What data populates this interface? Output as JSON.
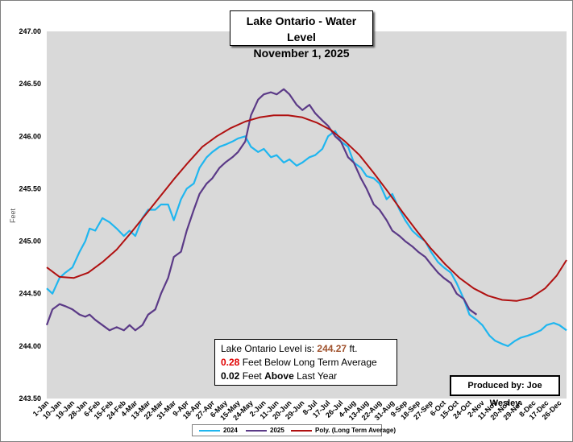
{
  "chart_data": {
    "type": "line",
    "title": "Lake Ontario - Water Level",
    "subtitle": "November 1, 2025",
    "ylabel": "Feet",
    "xlabel": "",
    "ylim": [
      243.5,
      247.0
    ],
    "ytick_labels": [
      "243.50",
      "244.00",
      "244.50",
      "245.00",
      "245.50",
      "246.00",
      "246.50",
      "247.00"
    ],
    "x_range_days": [
      1,
      365
    ],
    "x_tick_labels": [
      "1-Jan",
      "10-Jan",
      "19-Jan",
      "28-Jan",
      "6-Feb",
      "15-Feb",
      "24-Feb",
      "4-Mar",
      "13-Mar",
      "22-Mar",
      "31-Mar",
      "9-Apr",
      "18-Apr",
      "27-Apr",
      "6-May",
      "15-May",
      "24-May",
      "2-Jun",
      "11-Jun",
      "20-Jun",
      "29-Jun",
      "8-Jul",
      "17-Jul",
      "26-Jul",
      "4-Aug",
      "13-Aug",
      "22-Aug",
      "31-Aug",
      "9-Sep",
      "18-Sep",
      "27-Sep",
      "6-Oct",
      "15-Oct",
      "24-Oct",
      "2-Nov",
      "11-Nov",
      "20-Nov",
      "29-Nov",
      "8-Dec",
      "17-Dec",
      "26-Dec"
    ],
    "x_tick_days": [
      1,
      10,
      19,
      28,
      37,
      46,
      55,
      63,
      72,
      81,
      90,
      99,
      108,
      117,
      126,
      135,
      144,
      153,
      162,
      171,
      180,
      189,
      198,
      207,
      216,
      225,
      234,
      243,
      252,
      261,
      270,
      279,
      288,
      297,
      306,
      315,
      324,
      333,
      342,
      351,
      360
    ],
    "series": [
      {
        "name": "2024",
        "color": "#1fb6ef",
        "x": [
          1,
          5,
          10,
          14,
          19,
          24,
          28,
          31,
          35,
          40,
          45,
          50,
          55,
          59,
          63,
          68,
          72,
          77,
          81,
          86,
          90,
          95,
          99,
          104,
          108,
          113,
          117,
          122,
          126,
          131,
          135,
          140,
          144,
          149,
          153,
          158,
          162,
          167,
          171,
          176,
          180,
          185,
          189,
          194,
          198,
          203,
          207,
          212,
          216,
          221,
          225,
          230,
          234,
          239,
          243,
          248,
          252,
          257,
          261,
          266,
          270,
          275,
          279,
          284,
          288,
          293,
          297,
          302,
          306,
          311,
          315,
          320,
          324,
          329,
          333,
          338,
          342,
          347,
          351,
          356,
          360,
          365
        ],
        "y": [
          244.55,
          244.5,
          244.65,
          244.7,
          244.75,
          244.9,
          245.0,
          245.12,
          245.1,
          245.22,
          245.18,
          245.12,
          245.05,
          245.1,
          245.05,
          245.22,
          245.3,
          245.3,
          245.35,
          245.35,
          245.2,
          245.4,
          245.5,
          245.55,
          245.7,
          245.8,
          245.85,
          245.9,
          245.92,
          245.95,
          245.98,
          246.0,
          245.9,
          245.85,
          245.88,
          245.8,
          245.82,
          245.75,
          245.78,
          245.72,
          245.75,
          245.8,
          245.82,
          245.88,
          246.0,
          246.05,
          245.95,
          245.9,
          245.75,
          245.7,
          245.62,
          245.6,
          245.55,
          245.4,
          245.45,
          245.3,
          245.2,
          245.1,
          245.05,
          245.0,
          244.9,
          244.8,
          244.75,
          244.7,
          244.6,
          244.45,
          244.3,
          244.25,
          244.2,
          244.1,
          244.05,
          244.02,
          244.0,
          244.05,
          244.08,
          244.1,
          244.12,
          244.15,
          244.2,
          244.22,
          244.2,
          244.15
        ]
      },
      {
        "name": "2025",
        "color": "#5b3a87",
        "x": [
          1,
          5,
          10,
          14,
          19,
          24,
          28,
          31,
          35,
          40,
          45,
          50,
          55,
          59,
          63,
          68,
          72,
          77,
          81,
          86,
          90,
          95,
          99,
          104,
          108,
          113,
          117,
          122,
          126,
          131,
          135,
          140,
          144,
          149,
          153,
          158,
          162,
          167,
          171,
          176,
          180,
          185,
          189,
          194,
          198,
          203,
          207,
          212,
          216,
          221,
          225,
          230,
          234,
          239,
          243,
          248,
          252,
          257,
          261,
          266,
          270,
          275,
          279,
          284,
          288,
          293,
          297,
          302
        ],
        "y": [
          244.2,
          244.35,
          244.4,
          244.38,
          244.35,
          244.3,
          244.28,
          244.3,
          244.25,
          244.2,
          244.15,
          244.18,
          244.15,
          244.2,
          244.15,
          244.2,
          244.3,
          244.35,
          244.5,
          244.65,
          244.85,
          244.9,
          245.1,
          245.3,
          245.45,
          245.55,
          245.6,
          245.7,
          245.75,
          245.8,
          245.85,
          245.95,
          246.2,
          246.35,
          246.4,
          246.42,
          246.4,
          246.45,
          246.4,
          246.3,
          246.25,
          246.3,
          246.22,
          246.15,
          246.1,
          246.0,
          245.95,
          245.8,
          245.75,
          245.6,
          245.5,
          245.35,
          245.3,
          245.2,
          245.1,
          245.05,
          245.0,
          244.95,
          244.9,
          244.85,
          244.78,
          244.7,
          244.65,
          244.6,
          244.5,
          244.45,
          244.35,
          244.3
        ]
      },
      {
        "name": "Poly. (Long Term Average)",
        "color": "#b01010",
        "x": [
          1,
          10,
          20,
          30,
          40,
          50,
          60,
          70,
          80,
          90,
          100,
          110,
          120,
          130,
          140,
          150,
          160,
          170,
          180,
          190,
          200,
          210,
          220,
          230,
          240,
          250,
          260,
          270,
          280,
          290,
          300,
          310,
          320,
          330,
          340,
          350,
          358,
          365
        ],
        "y": [
          244.75,
          244.66,
          244.65,
          244.7,
          244.8,
          244.92,
          245.08,
          245.25,
          245.42,
          245.59,
          245.75,
          245.9,
          246.0,
          246.08,
          246.14,
          246.18,
          246.2,
          246.2,
          246.18,
          246.13,
          246.06,
          245.95,
          245.82,
          245.65,
          245.47,
          245.28,
          245.1,
          244.93,
          244.78,
          244.65,
          244.55,
          244.48,
          244.44,
          244.43,
          244.46,
          244.55,
          244.67,
          244.82
        ]
      }
    ]
  },
  "title_box": {
    "line1": "Lake Ontario - Water Level",
    "line2": "November 1, 2025"
  },
  "info": {
    "level_label": "Lake Ontario Level is:",
    "level_value": "244.27",
    "level_unit": "ft.",
    "below_value": "0.28",
    "below_text": "Feet Below Long Term Average",
    "last_year_value": "0.02",
    "last_year_feet": "Feet",
    "last_year_above": "Above",
    "last_year_tail": "Last Year"
  },
  "producer": "Produced by: Joe Wesley",
  "colors": {
    "plot_bg": "#d9d9d9",
    "s2024": "#1fb6ef",
    "s2025": "#5b3a87",
    "poly": "#b01010"
  }
}
